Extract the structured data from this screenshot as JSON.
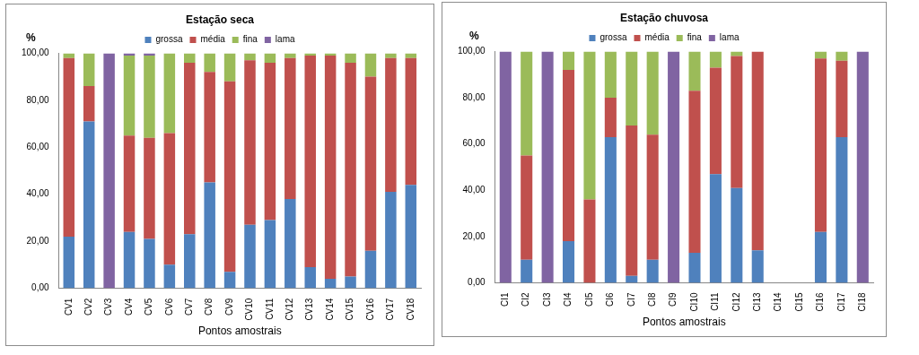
{
  "chart_data": [
    {
      "type": "bar",
      "title": "Estação seca",
      "x_label": "Pontos amostrais",
      "y_label": "%",
      "stacked": true,
      "legend": "top",
      "grid": false,
      "categories": [
        "CV1",
        "CV2",
        "CV3",
        "CV4",
        "CV5",
        "CV6",
        "CV7",
        "CV8",
        "CV9",
        "CV10",
        "CV11",
        "CV12",
        "CV13",
        "CV14",
        "CV15",
        "CV16",
        "CV17",
        "CV18"
      ],
      "series": [
        {
          "name": "grossa",
          "color": "#4f81bd",
          "values": [
            22,
            71,
            0,
            24,
            21,
            10,
            23,
            45,
            7,
            27,
            29,
            38,
            9,
            4,
            5,
            16,
            41,
            44
          ]
        },
        {
          "name": "média",
          "color": "#c0504d",
          "values": [
            76,
            15,
            0,
            41,
            43,
            56,
            73,
            47,
            81,
            70,
            67,
            60,
            90,
            95,
            91,
            74,
            57,
            54
          ]
        },
        {
          "name": "fina",
          "color": "#9bbb59",
          "values": [
            2,
            14,
            0,
            34,
            35,
            34,
            4,
            8,
            12,
            3,
            4,
            2,
            1,
            1,
            4,
            10,
            2,
            2
          ]
        },
        {
          "name": "lama",
          "color": "#8064a2",
          "values": [
            0,
            0,
            100,
            1,
            1,
            0,
            0,
            0,
            0,
            0,
            0,
            0,
            0,
            0,
            0,
            0,
            0,
            0
          ]
        }
      ],
      "ylim": [
        0,
        100
      ],
      "yticks": [
        {
          "value": 0,
          "label": "0,00"
        },
        {
          "value": 20,
          "label": "20,00"
        },
        {
          "value": 40,
          "label": "40,00"
        },
        {
          "value": 60,
          "label": "60,00"
        },
        {
          "value": 80,
          "label": "80,00"
        },
        {
          "value": 100,
          "label": "100,00"
        }
      ]
    },
    {
      "type": "bar",
      "title": "Estação chuvosa",
      "x_label": "Pontos amostrais",
      "y_label": "%",
      "stacked": true,
      "legend": "top",
      "grid": false,
      "categories": [
        "CI1",
        "CI2",
        "CI3",
        "CI4",
        "CI5",
        "CI6",
        "CI7",
        "CI8",
        "CI9",
        "CI10",
        "CI11",
        "CI12",
        "CI13",
        "CI14",
        "CI15",
        "CI16",
        "CI17",
        "CI18"
      ],
      "series": [
        {
          "name": "grossa",
          "color": "#4f81bd",
          "values": [
            0,
            10,
            0,
            18,
            0,
            63,
            3,
            10,
            0,
            13,
            47,
            41,
            14,
            null,
            null,
            22,
            63,
            0
          ]
        },
        {
          "name": "média",
          "color": "#c0504d",
          "values": [
            0,
            45,
            0,
            74,
            36,
            17,
            65,
            54,
            0,
            70,
            46,
            57,
            86,
            null,
            null,
            75,
            33,
            0
          ]
        },
        {
          "name": "fina",
          "color": "#9bbb59",
          "values": [
            0,
            45,
            0,
            8,
            64,
            20,
            32,
            36,
            0,
            17,
            7,
            2,
            0,
            null,
            null,
            3,
            4,
            0
          ]
        },
        {
          "name": "lama",
          "color": "#8064a2",
          "values": [
            100,
            0,
            100,
            0,
            0,
            0,
            0,
            0,
            100,
            0,
            0,
            0,
            0,
            null,
            null,
            0,
            0,
            100
          ]
        }
      ],
      "ylim": [
        0,
        100
      ],
      "yticks": [
        {
          "value": 0,
          "label": "0,00"
        },
        {
          "value": 20,
          "label": "20,00"
        },
        {
          "value": 40,
          "label": "40,00"
        },
        {
          "value": 60,
          "label": "60,00"
        },
        {
          "value": 80,
          "label": "80,00"
        },
        {
          "value": 100,
          "label": "100,00"
        }
      ]
    }
  ]
}
